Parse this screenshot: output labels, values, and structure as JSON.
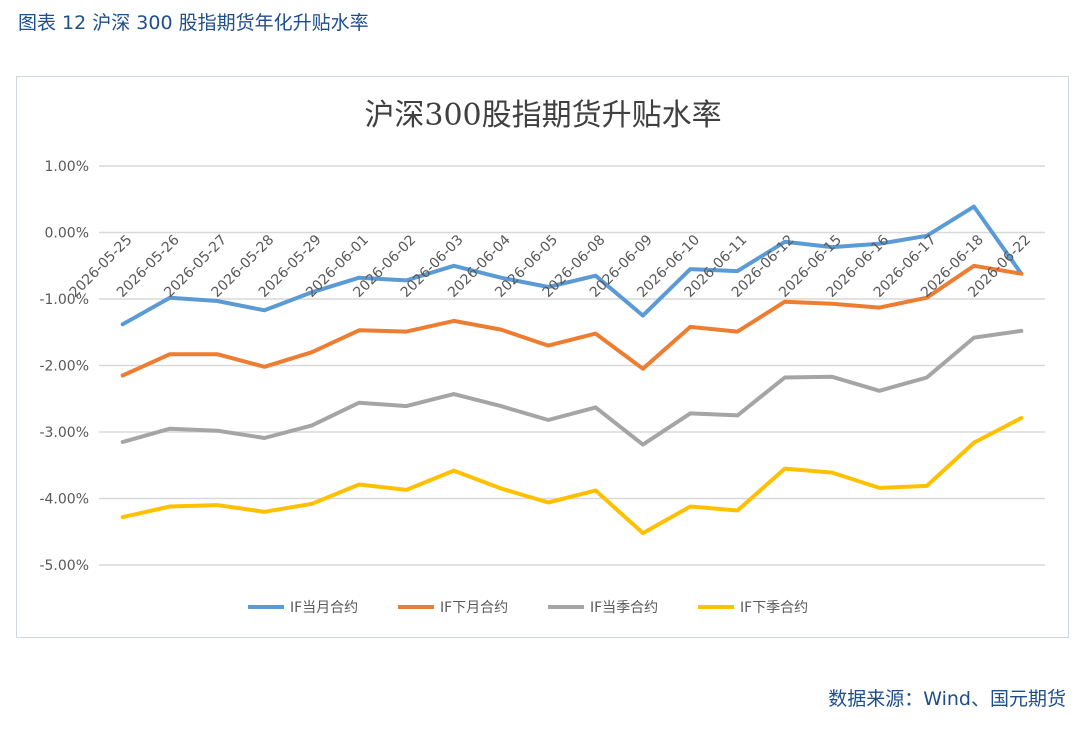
{
  "figure_caption": "图表 12 沪深 300 股指期货年化升贴水率",
  "source": "数据来源：Wind、国元期货",
  "colors": {
    "series": [
      "#5b9bd5",
      "#ed7d31",
      "#a5a5a5",
      "#ffc000"
    ],
    "grid": "#d9d9d9",
    "text": "#595959"
  },
  "chart_data": {
    "type": "line",
    "title": "沪深300股指期货升贴水率",
    "categories": [
      "2026-05-25",
      "2026-05-26",
      "2026-05-27",
      "2026-05-28",
      "2026-05-29",
      "2026-06-01",
      "2026-06-02",
      "2026-06-03",
      "2026-06-04",
      "2026-06-05",
      "2026-06-08",
      "2026-06-09",
      "2026-06-10",
      "2026-06-11",
      "2026-06-12",
      "2026-06-15",
      "2026-06-16",
      "2026-06-17",
      "2026-06-18",
      "2026-06-22"
    ],
    "y_ticks": [
      "1.00%",
      "0.00%",
      "-1.00%",
      "-2.00%",
      "-3.00%",
      "-4.00%",
      "-5.00%"
    ],
    "ylim": [
      -5.0,
      1.0
    ],
    "y_unit": "%",
    "grid": true,
    "legend_position": "bottom",
    "series": [
      {
        "name": "IF当月合约",
        "values": [
          -1.38,
          -0.98,
          -1.03,
          -1.17,
          -0.9,
          -0.68,
          -0.72,
          -0.5,
          -0.68,
          -0.82,
          -0.65,
          -1.25,
          -0.55,
          -0.58,
          -0.14,
          -0.22,
          -0.17,
          -0.05,
          0.39,
          -0.62
        ]
      },
      {
        "name": "IF下月合约",
        "values": [
          -2.15,
          -1.83,
          -1.83,
          -2.02,
          -1.8,
          -1.47,
          -1.49,
          -1.33,
          -1.46,
          -1.7,
          -1.52,
          -2.05,
          -1.42,
          -1.49,
          -1.04,
          -1.07,
          -1.13,
          -0.98,
          -0.5,
          -0.62
        ]
      },
      {
        "name": "IF当季合约",
        "values": [
          -3.15,
          -2.95,
          -2.98,
          -3.09,
          -2.9,
          -2.56,
          -2.61,
          -2.43,
          -2.61,
          -2.82,
          -2.63,
          -3.19,
          -2.72,
          -2.75,
          -2.18,
          -2.17,
          -2.38,
          -2.18,
          -1.58,
          -1.48
        ]
      },
      {
        "name": "IF下季合约",
        "values": [
          -4.28,
          -4.12,
          -4.1,
          -4.2,
          -4.08,
          -3.79,
          -3.87,
          -3.58,
          -3.85,
          -4.06,
          -3.88,
          -4.52,
          -4.12,
          -4.18,
          -3.55,
          -3.61,
          -3.84,
          -3.81,
          -3.16,
          -2.79
        ]
      }
    ]
  }
}
